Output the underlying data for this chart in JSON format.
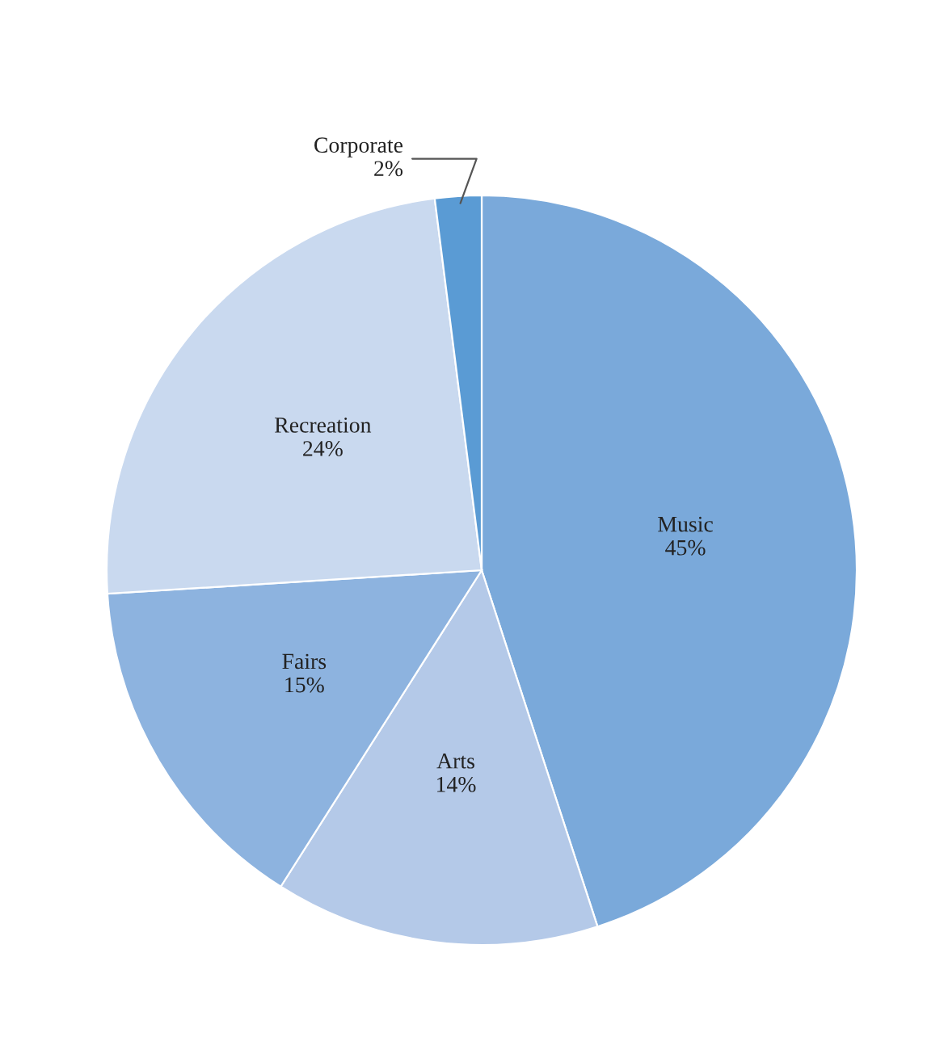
{
  "chart_data": {
    "type": "pie",
    "categories": [
      "Music",
      "Arts",
      "Fairs",
      "Recreation",
      "Corporate"
    ],
    "values": [
      45,
      14,
      15,
      24,
      2
    ],
    "colors": [
      "#7aa9da",
      "#b4c9e8",
      "#8db3df",
      "#c9d9ef",
      "#5a9bd4"
    ],
    "value_labels": [
      "45%",
      "14%",
      "15%",
      "24%",
      "2%"
    ]
  }
}
